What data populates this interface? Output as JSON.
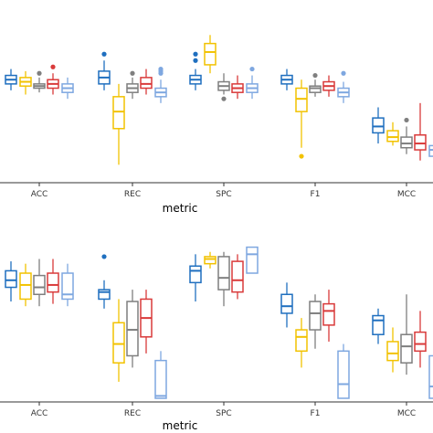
{
  "chart_data": [
    {
      "type": "box",
      "xlabel": "metric",
      "categories": [
        "ACC",
        "REC",
        "SPC",
        "F1",
        "MCC"
      ],
      "series_colors": [
        "#1f6fbf",
        "#f2c200",
        "#7f7f7f",
        "#d93a3a",
        "#7ea7e0"
      ],
      "boxes": [
        [
          {
            "whislo": 0.9,
            "q1": 0.93,
            "med": 0.95,
            "q3": 0.97,
            "whishi": 1.0,
            "fliers": []
          },
          {
            "whislo": 0.88,
            "q1": 0.92,
            "med": 0.94,
            "q3": 0.96,
            "whishi": 0.99,
            "fliers": []
          },
          {
            "whislo": 0.89,
            "q1": 0.91,
            "med": 0.92,
            "q3": 0.93,
            "whishi": 0.96,
            "fliers": [
              0.98
            ]
          },
          {
            "whislo": 0.88,
            "q1": 0.91,
            "med": 0.93,
            "q3": 0.95,
            "whishi": 0.98,
            "fliers": [
              1.01
            ]
          },
          {
            "whislo": 0.86,
            "q1": 0.89,
            "med": 0.91,
            "q3": 0.93,
            "whishi": 0.96,
            "fliers": []
          }
        ],
        [
          {
            "whislo": 0.9,
            "q1": 0.93,
            "med": 0.96,
            "q3": 0.99,
            "whishi": 1.04,
            "fliers": [
              1.07
            ]
          },
          {
            "whislo": 0.55,
            "q1": 0.72,
            "med": 0.8,
            "q3": 0.87,
            "whishi": 0.93,
            "fliers": []
          },
          {
            "whislo": 0.86,
            "q1": 0.89,
            "med": 0.91,
            "q3": 0.93,
            "whishi": 0.96,
            "fliers": [
              0.98
            ]
          },
          {
            "whislo": 0.88,
            "q1": 0.91,
            "med": 0.93,
            "q3": 0.96,
            "whishi": 1.0,
            "fliers": []
          },
          {
            "whislo": 0.84,
            "q1": 0.87,
            "med": 0.89,
            "q3": 0.91,
            "whishi": 0.95,
            "fliers": [
              0.98,
              0.99,
              1.0
            ]
          }
        ],
        [
          {
            "whislo": 0.9,
            "q1": 0.93,
            "med": 0.95,
            "q3": 0.97,
            "whishi": 1.0,
            "fliers": [
              1.04,
              1.07
            ]
          },
          {
            "whislo": 0.98,
            "q1": 1.02,
            "med": 1.08,
            "q3": 1.12,
            "whishi": 1.16,
            "fliers": []
          },
          {
            "whislo": 0.88,
            "q1": 0.9,
            "med": 0.92,
            "q3": 0.94,
            "whishi": 0.98,
            "fliers": [
              0.86
            ]
          },
          {
            "whislo": 0.86,
            "q1": 0.89,
            "med": 0.91,
            "q3": 0.93,
            "whishi": 0.97,
            "fliers": []
          },
          {
            "whislo": 0.86,
            "q1": 0.89,
            "med": 0.91,
            "q3": 0.93,
            "whishi": 0.97,
            "fliers": [
              1.0
            ]
          }
        ],
        [
          {
            "whislo": 0.9,
            "q1": 0.93,
            "med": 0.95,
            "q3": 0.97,
            "whishi": 1.0,
            "fliers": []
          },
          {
            "whislo": 0.63,
            "q1": 0.8,
            "med": 0.86,
            "q3": 0.91,
            "whishi": 0.95,
            "fliers": [
              0.59
            ]
          },
          {
            "whislo": 0.87,
            "q1": 0.89,
            "med": 0.91,
            "q3": 0.92,
            "whishi": 0.95,
            "fliers": [
              0.97
            ]
          },
          {
            "whislo": 0.87,
            "q1": 0.9,
            "med": 0.92,
            "q3": 0.94,
            "whishi": 0.97,
            "fliers": []
          },
          {
            "whislo": 0.84,
            "q1": 0.87,
            "med": 0.89,
            "q3": 0.91,
            "whishi": 0.94,
            "fliers": [
              0.98
            ]
          }
        ],
        [
          {
            "whislo": 0.65,
            "q1": 0.7,
            "med": 0.73,
            "q3": 0.77,
            "whishi": 0.82,
            "fliers": []
          },
          {
            "whislo": 0.64,
            "q1": 0.66,
            "med": 0.68,
            "q3": 0.71,
            "whishi": 0.75,
            "fliers": []
          },
          {
            "whislo": 0.6,
            "q1": 0.63,
            "med": 0.65,
            "q3": 0.68,
            "whishi": 0.73,
            "fliers": [
              0.76
            ]
          },
          {
            "whislo": 0.57,
            "q1": 0.62,
            "med": 0.65,
            "q3": 0.69,
            "whishi": 0.84,
            "fliers": []
          },
          {
            "whislo": 0.57,
            "q1": 0.59,
            "med": 0.62,
            "q3": 0.64,
            "whishi": 0.68,
            "fliers": []
          }
        ]
      ]
    },
    {
      "type": "box",
      "xlabel": "metric",
      "categories": [
        "ACC",
        "REC",
        "SPC",
        "F1",
        "MCC"
      ],
      "series_colors": [
        "#1f6fbf",
        "#f2c200",
        "#7f7f7f",
        "#d93a3a",
        "#7ea7e0"
      ],
      "boxes": [
        [
          {
            "whislo": 0.86,
            "q1": 0.92,
            "med": 0.95,
            "q3": 0.99,
            "whishi": 1.03,
            "fliers": []
          },
          {
            "whislo": 0.84,
            "q1": 0.87,
            "med": 0.93,
            "q3": 0.98,
            "whishi": 1.02,
            "fliers": []
          },
          {
            "whislo": 0.84,
            "q1": 0.89,
            "med": 0.92,
            "q3": 0.97,
            "whishi": 1.04,
            "fliers": []
          },
          {
            "whislo": 0.85,
            "q1": 0.9,
            "med": 0.93,
            "q3": 0.98,
            "whishi": 1.04,
            "fliers": []
          },
          {
            "whislo": 0.84,
            "q1": 0.87,
            "med": 0.89,
            "q3": 0.98,
            "whishi": 1.02,
            "fliers": []
          }
        ],
        [
          {
            "whislo": 0.83,
            "q1": 0.87,
            "med": 0.9,
            "q3": 0.91,
            "whishi": 0.95,
            "fliers": [
              1.05
            ]
          },
          {
            "whislo": 0.52,
            "q1": 0.6,
            "med": 0.68,
            "q3": 0.77,
            "whishi": 0.87,
            "fliers": []
          },
          {
            "whislo": 0.58,
            "q1": 0.63,
            "med": 0.74,
            "q3": 0.86,
            "whishi": 0.91,
            "fliers": []
          },
          {
            "whislo": 0.64,
            "q1": 0.71,
            "med": 0.79,
            "q3": 0.87,
            "whishi": 0.91,
            "fliers": []
          },
          {
            "whislo": 0.45,
            "q1": 0.45,
            "med": 0.46,
            "q3": 0.61,
            "whishi": 0.65,
            "fliers": []
          }
        ],
        [
          {
            "whislo": 0.86,
            "q1": 0.94,
            "med": 0.99,
            "q3": 1.01,
            "whishi": 1.06,
            "fliers": []
          },
          {
            "whislo": 1.0,
            "q1": 1.02,
            "med": 1.04,
            "q3": 1.05,
            "whishi": 1.07,
            "fliers": []
          },
          {
            "whislo": 0.84,
            "q1": 0.91,
            "med": 0.96,
            "q3": 1.05,
            "whishi": 1.07,
            "fliers": []
          },
          {
            "whislo": 0.87,
            "q1": 0.9,
            "med": 0.95,
            "q3": 1.03,
            "whishi": 1.06,
            "fliers": []
          },
          {
            "whislo": 0.98,
            "q1": 0.98,
            "med": 1.06,
            "q3": 1.09,
            "whishi": 1.09,
            "fliers": []
          }
        ],
        [
          {
            "whislo": 0.75,
            "q1": 0.81,
            "med": 0.84,
            "q3": 0.89,
            "whishi": 0.94,
            "fliers": []
          },
          {
            "whislo": 0.58,
            "q1": 0.65,
            "med": 0.71,
            "q3": 0.74,
            "whishi": 0.79,
            "fliers": []
          },
          {
            "whislo": 0.66,
            "q1": 0.74,
            "med": 0.81,
            "q3": 0.86,
            "whishi": 0.89,
            "fliers": []
          },
          {
            "whislo": 0.69,
            "q1": 0.76,
            "med": 0.82,
            "q3": 0.85,
            "whishi": 0.91,
            "fliers": []
          },
          {
            "whislo": 0.45,
            "q1": 0.45,
            "med": 0.51,
            "q3": 0.65,
            "whishi": 0.68,
            "fliers": []
          }
        ],
        [
          {
            "whislo": 0.68,
            "q1": 0.72,
            "med": 0.78,
            "q3": 0.8,
            "whishi": 0.83,
            "fliers": []
          },
          {
            "whislo": 0.56,
            "q1": 0.61,
            "med": 0.64,
            "q3": 0.69,
            "whishi": 0.75,
            "fliers": []
          },
          {
            "whislo": 0.55,
            "q1": 0.6,
            "med": 0.67,
            "q3": 0.72,
            "whishi": 0.89,
            "fliers": []
          },
          {
            "whislo": 0.58,
            "q1": 0.65,
            "med": 0.68,
            "q3": 0.73,
            "whishi": 0.82,
            "fliers": []
          },
          {
            "whislo": 0.45,
            "q1": 0.45,
            "med": 0.5,
            "q3": 0.63,
            "whishi": 0.63,
            "fliers": []
          }
        ]
      ]
    }
  ]
}
